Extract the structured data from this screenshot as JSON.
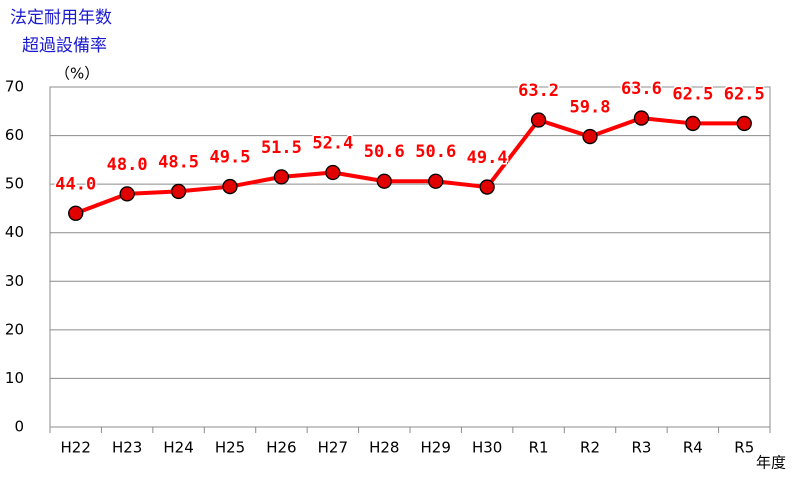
{
  "chart_data": {
    "type": "line",
    "title_lines": [
      "法定耐用年数",
      "超過設備率"
    ],
    "y_label": "（%）",
    "x_label": "年度",
    "categories": [
      "H22",
      "H23",
      "H24",
      "H25",
      "H26",
      "H27",
      "H28",
      "H29",
      "H30",
      "R1",
      "R2",
      "R3",
      "R4",
      "R5"
    ],
    "series": [
      {
        "color": "#ff0000",
        "marker_color": "#e00000",
        "values": [
          44.0,
          48.0,
          48.5,
          49.5,
          51.5,
          52.4,
          50.6,
          50.6,
          49.4,
          63.2,
          59.8,
          63.6,
          62.5,
          62.5
        ],
        "value_labels": [
          "44.0",
          "48.0",
          "48.5",
          "49.5",
          "51.5",
          "52.4",
          "50.6",
          "50.6",
          "49.4",
          "63.2",
          "59.8",
          "63.6",
          "62.5",
          "62.5"
        ]
      }
    ],
    "ylim": [
      0,
      70
    ],
    "yticks": [
      0,
      10,
      20,
      30,
      40,
      50,
      60,
      70
    ],
    "grid": true
  }
}
